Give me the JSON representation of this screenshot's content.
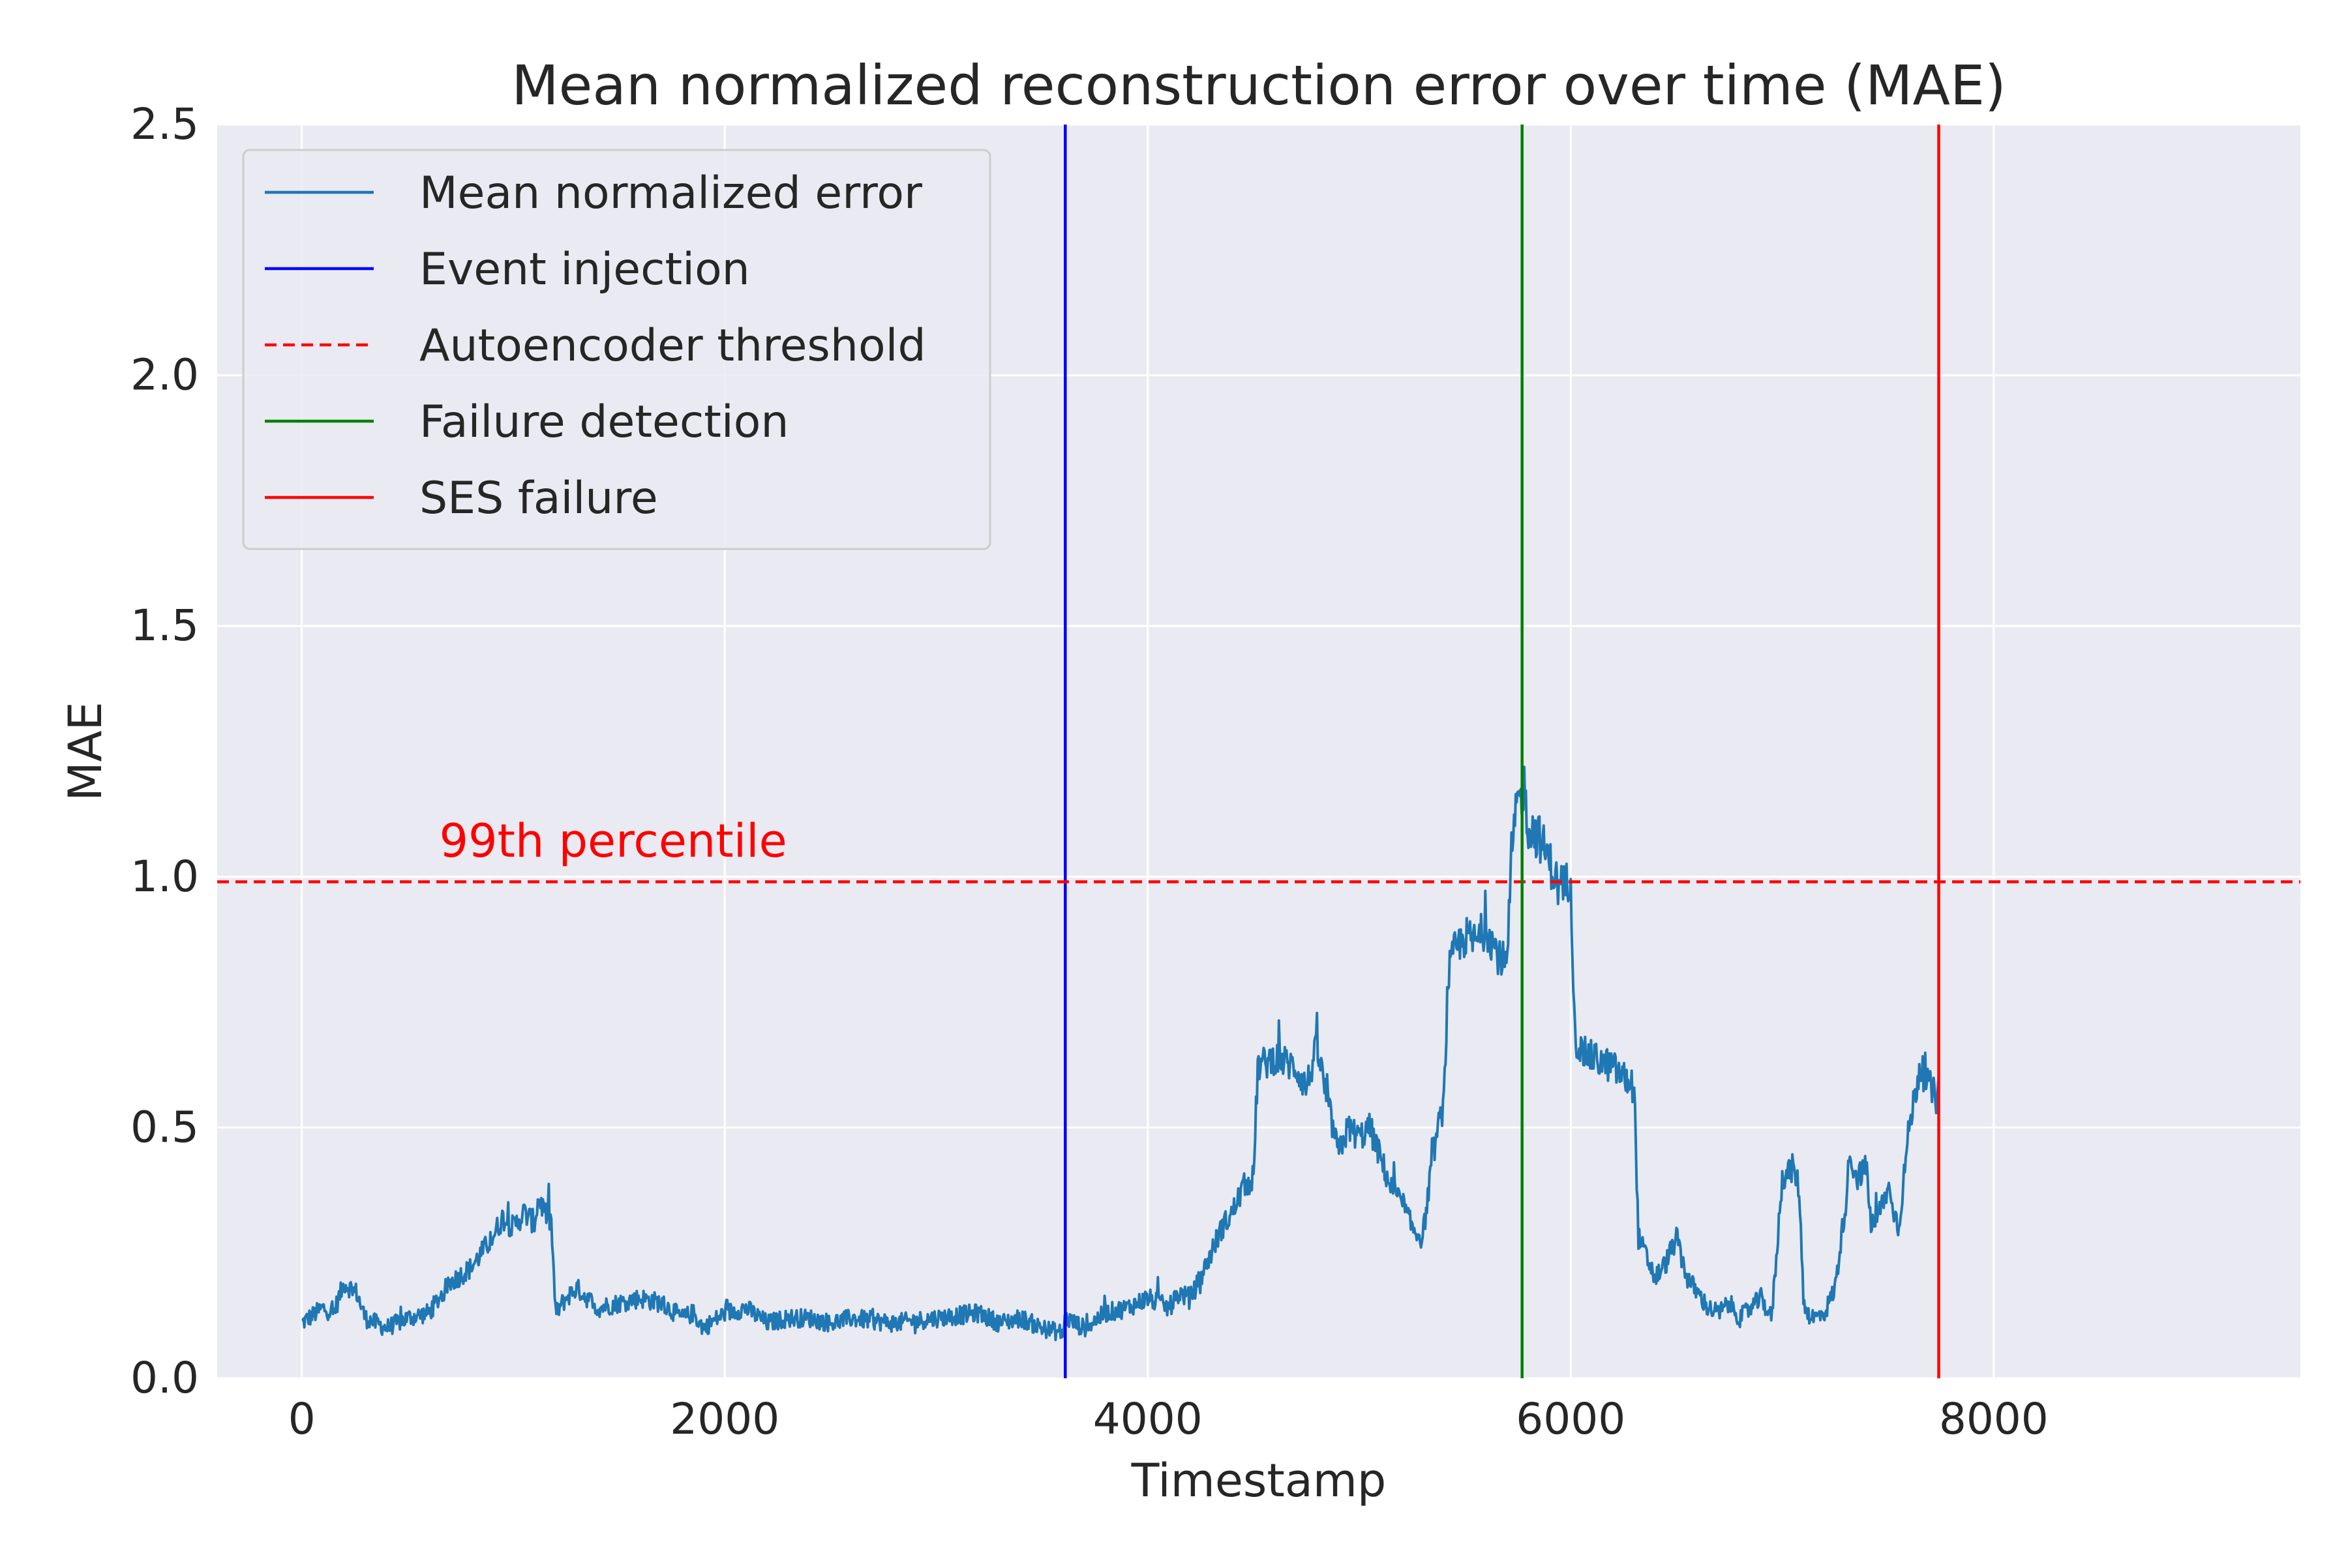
{
  "chart_data": {
    "type": "line",
    "title": "Mean normalized reconstruction error over time (MAE)",
    "xlabel": "Timestamp",
    "ylabel": "MAE",
    "xlim": [
      -400,
      9450
    ],
    "ylim": [
      0,
      2.5
    ],
    "xticks": [
      0,
      2000,
      4000,
      6000,
      8000
    ],
    "xtick_labels": [
      "0",
      "2000",
      "4000",
      "6000",
      "8000"
    ],
    "yticks": [
      0.0,
      0.5,
      1.0,
      1.5,
      2.0,
      2.5
    ],
    "ytick_labels": [
      "0.0",
      "0.5",
      "1.0",
      "1.5",
      "2.0",
      "2.5"
    ],
    "grid": true,
    "legend_position": "top-left",
    "series": [
      {
        "name": "Mean normalized error",
        "color": "#1f77b4",
        "anchors_x": [
          0,
          100,
          150,
          200,
          260,
          300,
          400,
          500,
          600,
          700,
          800,
          900,
          950,
          1000,
          1050,
          1100,
          1120,
          1150,
          1180,
          1200,
          1250,
          1300,
          1400,
          1500,
          1600,
          1700,
          1800,
          1850,
          1900,
          2000,
          2100,
          2200,
          2300,
          2400,
          2500,
          2600,
          2800,
          3000,
          3200,
          3300,
          3400,
          3500,
          3600,
          3610,
          3700,
          3800,
          3900,
          4000,
          4100,
          4150,
          4200,
          4250,
          4300,
          4350,
          4400,
          4450,
          4500,
          4520,
          4600,
          4700,
          4750,
          4800,
          4850,
          4900,
          4950,
          5000,
          5050,
          5100,
          5150,
          5200,
          5250,
          5300,
          5350,
          5400,
          5420,
          5450,
          5500,
          5550,
          5600,
          5650,
          5700,
          5720,
          5750,
          5780,
          5800,
          5850,
          5900,
          5950,
          6000,
          6020,
          6050,
          6100,
          6200,
          6300,
          6320,
          6350,
          6400,
          6450,
          6500,
          6550,
          6600,
          6650,
          6700,
          6750,
          6800,
          6850,
          6900,
          6950,
          7000,
          7050,
          7080,
          7100,
          7120,
          7150,
          7200,
          7250,
          7300,
          7320,
          7350,
          7400,
          7420,
          7450,
          7500,
          7550,
          7600,
          7650,
          7700,
          7740
        ],
        "anchors_y": [
          0.11,
          0.14,
          0.13,
          0.19,
          0.17,
          0.12,
          0.1,
          0.12,
          0.13,
          0.19,
          0.22,
          0.28,
          0.32,
          0.3,
          0.33,
          0.31,
          0.36,
          0.33,
          0.31,
          0.13,
          0.16,
          0.18,
          0.14,
          0.15,
          0.16,
          0.15,
          0.12,
          0.13,
          0.1,
          0.13,
          0.14,
          0.11,
          0.12,
          0.12,
          0.11,
          0.12,
          0.11,
          0.12,
          0.13,
          0.11,
          0.12,
          0.1,
          0.09,
          0.12,
          0.1,
          0.13,
          0.14,
          0.16,
          0.14,
          0.17,
          0.16,
          0.2,
          0.25,
          0.3,
          0.33,
          0.38,
          0.4,
          0.62,
          0.64,
          0.62,
          0.58,
          0.66,
          0.55,
          0.45,
          0.5,
          0.48,
          0.5,
          0.44,
          0.38,
          0.35,
          0.3,
          0.28,
          0.45,
          0.55,
          0.8,
          0.85,
          0.88,
          0.87,
          0.9,
          0.85,
          0.82,
          1.05,
          1.15,
          1.18,
          1.1,
          1.08,
          1.03,
          0.97,
          1.0,
          0.68,
          0.65,
          0.64,
          0.62,
          0.58,
          0.28,
          0.25,
          0.2,
          0.23,
          0.28,
          0.2,
          0.17,
          0.14,
          0.13,
          0.15,
          0.12,
          0.14,
          0.16,
          0.12,
          0.4,
          0.42,
          0.38,
          0.16,
          0.13,
          0.12,
          0.13,
          0.18,
          0.35,
          0.45,
          0.4,
          0.42,
          0.3,
          0.32,
          0.38,
          0.3,
          0.5,
          0.62,
          0.58,
          0.55,
          0.58
        ],
        "noise_amplitude": 0.025,
        "sample_step": 4
      }
    ],
    "reference_lines": [
      {
        "name": "Event injection",
        "orientation": "vertical",
        "x": 3610,
        "color": "#0000ff",
        "style": "solid"
      },
      {
        "name": "Autoencoder threshold",
        "orientation": "horizontal",
        "y": 0.99,
        "color": "#ff0000",
        "style": "dashed"
      },
      {
        "name": "Failure detection",
        "orientation": "vertical",
        "x": 5770,
        "color": "#008000",
        "style": "solid"
      },
      {
        "name": "SES failure",
        "orientation": "vertical",
        "x": 7740,
        "color": "#ff0000",
        "style": "solid"
      }
    ],
    "annotations": [
      {
        "text": "99th percentile",
        "x": 650,
        "y": 1.04,
        "color": "#ff0000"
      }
    ],
    "legend_entries": [
      {
        "label": "Mean normalized error",
        "color": "#1f77b4",
        "style": "solid"
      },
      {
        "label": "Event injection",
        "color": "#0000ff",
        "style": "solid"
      },
      {
        "label": "Autoencoder threshold",
        "color": "#ff0000",
        "style": "dashed"
      },
      {
        "label": "Failure detection",
        "color": "#008000",
        "style": "solid"
      },
      {
        "label": "SES failure",
        "color": "#ff0000",
        "style": "solid"
      }
    ],
    "colors": {
      "plot_background": "#eaeaf2",
      "grid": "#ffffff",
      "text": "#262626"
    }
  }
}
